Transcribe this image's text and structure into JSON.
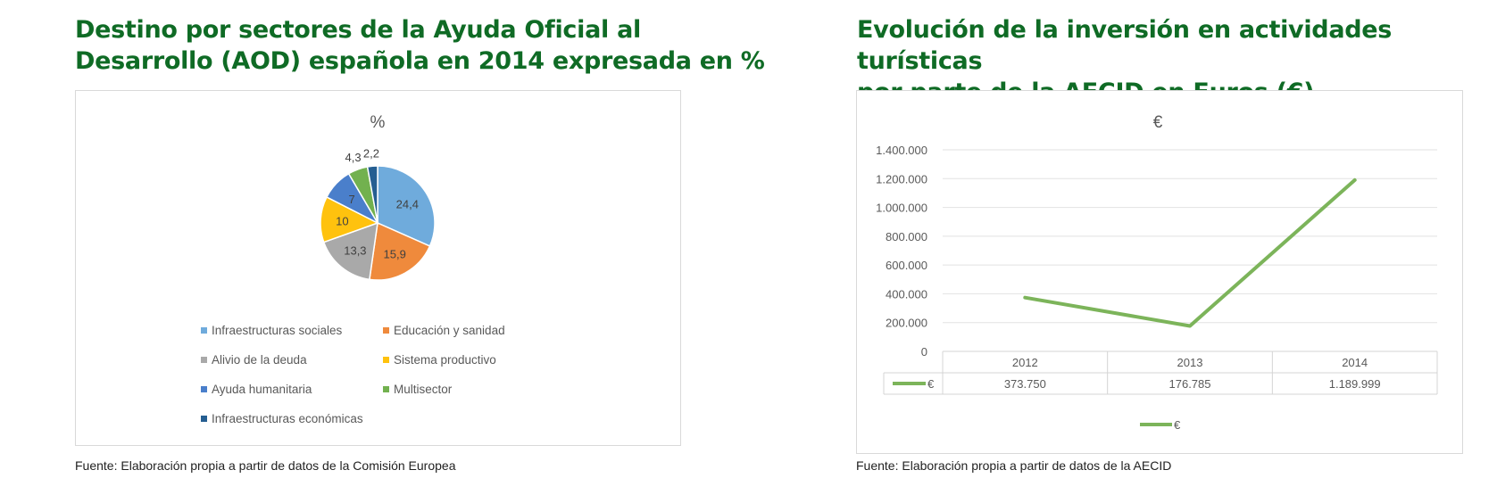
{
  "left": {
    "title_lines": [
      "Destino por sectores de la Ayuda Oficial al",
      "Desarrollo (AOD) española en 2014 expresada en %"
    ],
    "source": "Fuente: Elaboración propia a partir de datos de la Comisión Europea"
  },
  "right": {
    "title_lines": [
      "Evolución de la inversión en actividades turísticas",
      "por parte de la AECID en Euros (€)"
    ],
    "source": "Fuente: Elaboración propia a partir de datos de la AECID"
  },
  "chart_data": [
    {
      "type": "pie",
      "title": "%",
      "labels": [
        "Infraestructuras sociales",
        "Educación y sanidad",
        "Alivio de la deuda",
        "Sistema productivo",
        "Ayuda humanitaria",
        "Multisector",
        "Infraestructuras económicas"
      ],
      "values": [
        24.4,
        15.9,
        13.3,
        10,
        7,
        4.3,
        2.2
      ],
      "value_labels": [
        "24,4",
        "15,9",
        "13,3",
        "10",
        "7",
        "4,3",
        "2,2"
      ],
      "colors": [
        "#6fabdc",
        "#ef8a3c",
        "#a9a9a9",
        "#ffc20e",
        "#4a7fcb",
        "#72b14f",
        "#255e91"
      ],
      "legend": "bottom"
    },
    {
      "type": "line",
      "title": "€",
      "categories": [
        "2012",
        "2013",
        "2014"
      ],
      "series": [
        {
          "name": "€",
          "values": [
            373750,
            176785,
            1189999
          ],
          "value_labels": [
            "373.750",
            "176.785",
            "1.189.999"
          ],
          "color": "#7cb45a"
        }
      ],
      "ylim": [
        0,
        1400000
      ],
      "yticks": [
        0,
        200000,
        400000,
        600000,
        800000,
        1000000,
        1200000,
        1400000
      ],
      "ytick_labels": [
        "0",
        "200.000",
        "400.000",
        "600.000",
        "800.000",
        "1.000.000",
        "1.200.000",
        "1.400.000"
      ],
      "grid": true,
      "data_table": true,
      "legend": "bottom"
    }
  ]
}
